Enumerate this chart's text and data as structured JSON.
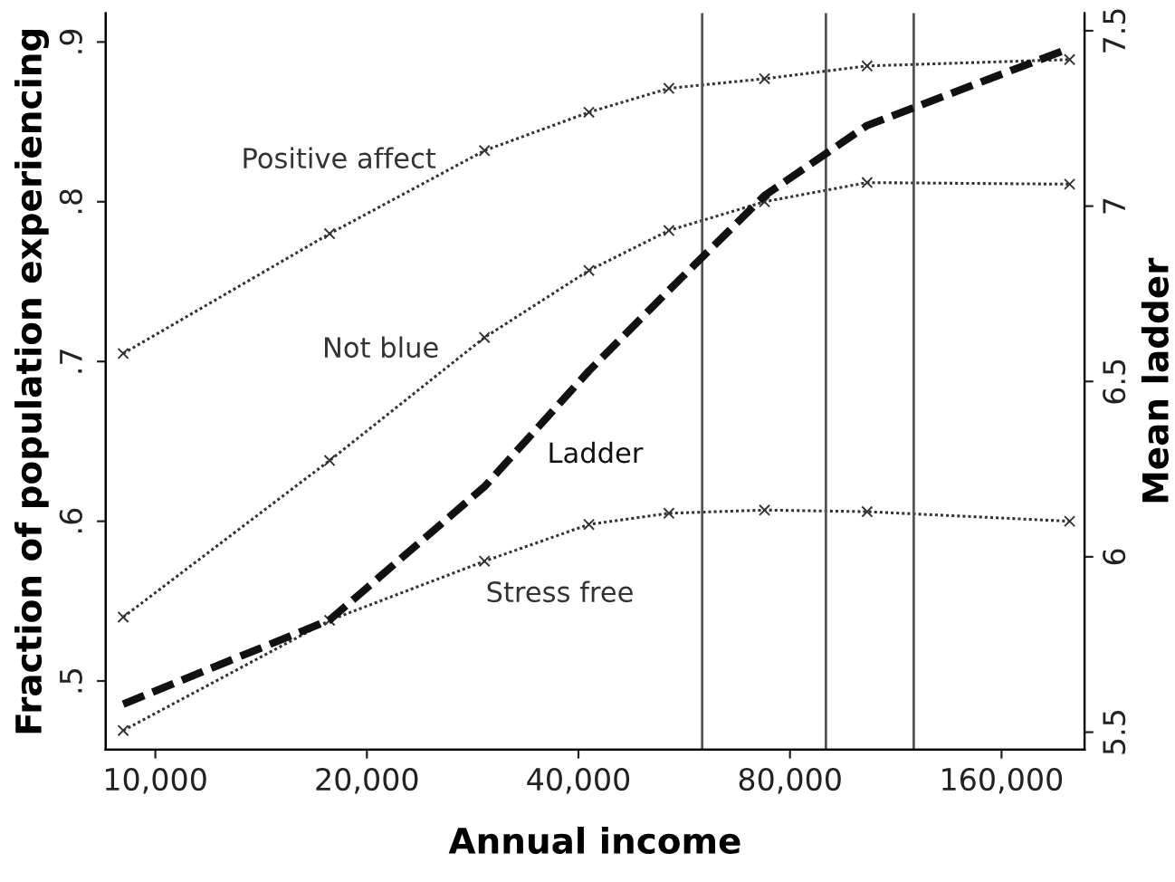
{
  "chart_data": {
    "type": "line",
    "xlabel": "Annual income",
    "ylabel": "Fraction of population experiencing",
    "y2label": "Mean ladder",
    "x": [
      9000,
      17700,
      29400,
      41400,
      53800,
      73600,
      103000,
      200000
    ],
    "series": [
      {
        "name": "Positive affect",
        "color": "#333333",
        "values": [
          0.705,
          0.78,
          0.832,
          0.856,
          0.871,
          0.877,
          0.885,
          0.889
        ],
        "line_style": "dotted",
        "marker": "cross"
      },
      {
        "name": "Not blue",
        "color": "#333333",
        "values": [
          0.54,
          0.638,
          0.715,
          0.757,
          0.782,
          0.8,
          0.812,
          0.811
        ],
        "line_style": "dotted",
        "marker": "cross"
      },
      {
        "name": "Ladder",
        "color": "#111111",
        "values": [
          5.58,
          5.82,
          6.2,
          6.53,
          6.76,
          7.03,
          7.23,
          7.45
        ],
        "line_style": "dashed",
        "marker": "none",
        "axis": "y2"
      },
      {
        "name": "Stress free",
        "color": "#333333",
        "values": [
          0.469,
          0.538,
          0.575,
          0.598,
          0.605,
          0.607,
          0.606,
          0.6
        ],
        "line_style": "dotted",
        "marker": "cross"
      }
    ],
    "log": "x",
    "xlim": [
      8500,
      210000
    ],
    "xticks": [
      {
        "value": 10000,
        "label": "10,000"
      },
      {
        "value": 20000,
        "label": "20,000"
      },
      {
        "value": 40000,
        "label": "40,000"
      },
      {
        "value": 80000,
        "label": "80,000"
      },
      {
        "value": 160000,
        "label": "160,000"
      }
    ],
    "ylim": [
      0.457,
      0.918
    ],
    "yticks": [
      {
        "value": 0.5,
        "label": ".5"
      },
      {
        "value": 0.6,
        "label": ".6"
      },
      {
        "value": 0.7,
        "label": ".7"
      },
      {
        "value": 0.8,
        "label": ".8"
      },
      {
        "value": 0.9,
        "label": ".9"
      }
    ],
    "y2lim": [
      5.45,
      7.55
    ],
    "y2ticks": [
      5.5,
      6,
      6.5,
      7,
      7.5
    ],
    "ref_lines": [
      {
        "axis": "x",
        "value": 60000,
        "color": "#555555"
      },
      {
        "axis": "x",
        "value": 90000,
        "color": "#555555"
      },
      {
        "axis": "x",
        "value": 120000,
        "color": "#555555"
      }
    ],
    "grid": false,
    "legend": false
  }
}
